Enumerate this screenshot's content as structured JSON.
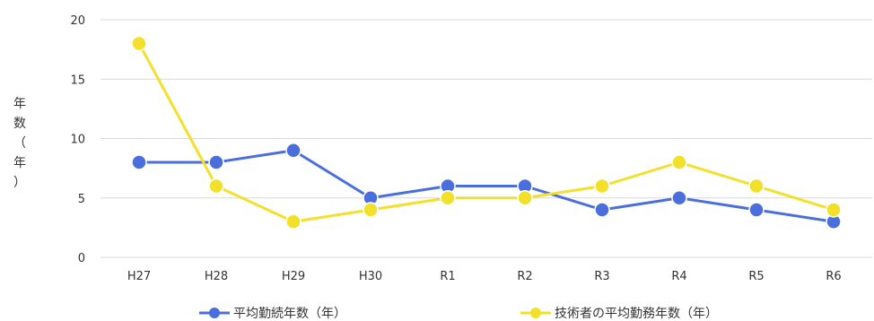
{
  "chart_data": {
    "type": "line",
    "title": "",
    "xlabel": "",
    "ylabel": "年数（年）",
    "ylabel_chars": [
      "年",
      "数",
      "（",
      "年",
      "）"
    ],
    "ylim": [
      0,
      20
    ],
    "yticks": [
      0,
      5,
      10,
      15,
      20
    ],
    "grid": true,
    "legend_position": "bottom",
    "categories": [
      "H27",
      "H28",
      "H29",
      "H30",
      "R1",
      "R2",
      "R3",
      "R4",
      "R5",
      "R6"
    ],
    "series": [
      {
        "name": "平均勤続年数（年）",
        "color": "#4a6fdc",
        "values": [
          8,
          8,
          9,
          5,
          6,
          6,
          4,
          5,
          4,
          3
        ]
      },
      {
        "name": "技術者の平均勤務年数（年）",
        "color": "#f2e02a",
        "values": [
          18,
          6,
          3,
          4,
          5,
          5,
          6,
          8,
          6,
          4
        ]
      }
    ]
  }
}
